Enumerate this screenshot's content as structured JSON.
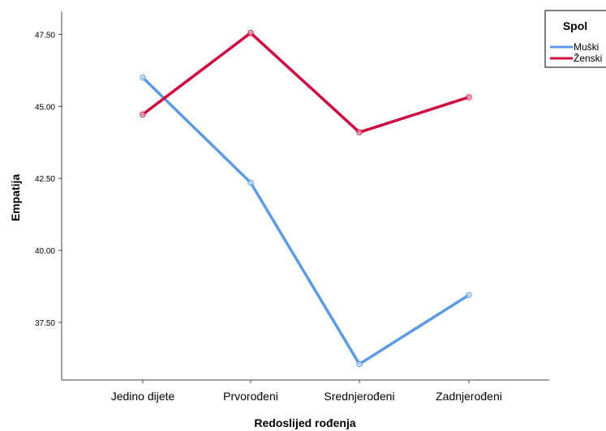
{
  "chart_data": {
    "type": "line",
    "xlabel": "Redoslijed rođenja",
    "ylabel": "Empatija",
    "categories": [
      "Jedino dijete",
      "Prvorođeni",
      "Srednjerođeni",
      "Zadnjerođeni"
    ],
    "y_ticks": [
      "37.50",
      "40.00",
      "42.50",
      "45.00",
      "47.50"
    ],
    "ylim": [
      35.5,
      48.3
    ],
    "grid": false,
    "legend": {
      "title": "Spol",
      "position": "top-right"
    },
    "series": [
      {
        "name": "Muški",
        "color": "#5b9be6",
        "values": [
          46.0,
          42.35,
          36.05,
          38.45
        ]
      },
      {
        "name": "Ženski",
        "color": "#d2073f",
        "values": [
          44.72,
          47.55,
          44.1,
          45.32
        ]
      }
    ]
  }
}
